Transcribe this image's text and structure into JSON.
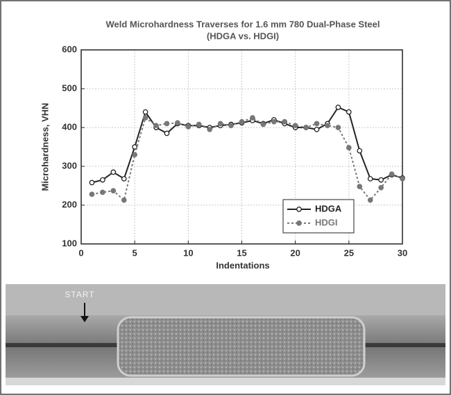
{
  "chart_data": {
    "type": "line",
    "title": "Weld Microhardness Traverses for 1.6 mm 780 Dual-Phase Steel",
    "subtitle": "(HDGA vs. HDGI)",
    "x_label": "Indentations",
    "y_label": "Microhardness, VHN",
    "x": [
      1,
      2,
      3,
      4,
      5,
      6,
      7,
      8,
      9,
      10,
      11,
      12,
      13,
      14,
      15,
      16,
      17,
      18,
      19,
      20,
      21,
      22,
      23,
      24,
      25,
      26,
      27,
      28,
      29,
      30
    ],
    "series": [
      {
        "name": "HDGA",
        "color": "#222222",
        "dash": "solid",
        "marker": "open-circle",
        "values": [
          258,
          265,
          285,
          268,
          350,
          440,
          400,
          385,
          410,
          405,
          405,
          400,
          405,
          408,
          412,
          418,
          410,
          420,
          410,
          400,
          400,
          395,
          410,
          452,
          440,
          340,
          268,
          265,
          278,
          270
        ]
      },
      {
        "name": "HDGI",
        "color": "#777777",
        "dash": "dotted",
        "marker": "filled-circle",
        "values": [
          228,
          233,
          237,
          213,
          330,
          425,
          405,
          410,
          412,
          402,
          408,
          395,
          410,
          405,
          415,
          425,
          408,
          415,
          415,
          405,
          400,
          410,
          405,
          400,
          348,
          248,
          213,
          245,
          280,
          268
        ]
      }
    ],
    "xlim": [
      0,
      30
    ],
    "xticks": [
      0,
      5,
      10,
      15,
      20,
      25,
      30
    ],
    "ylim": [
      100,
      600
    ],
    "yticks": [
      100,
      200,
      300,
      400,
      500,
      600
    ],
    "grid": true,
    "legend": "lower right"
  },
  "photo": {
    "label": "START"
  }
}
